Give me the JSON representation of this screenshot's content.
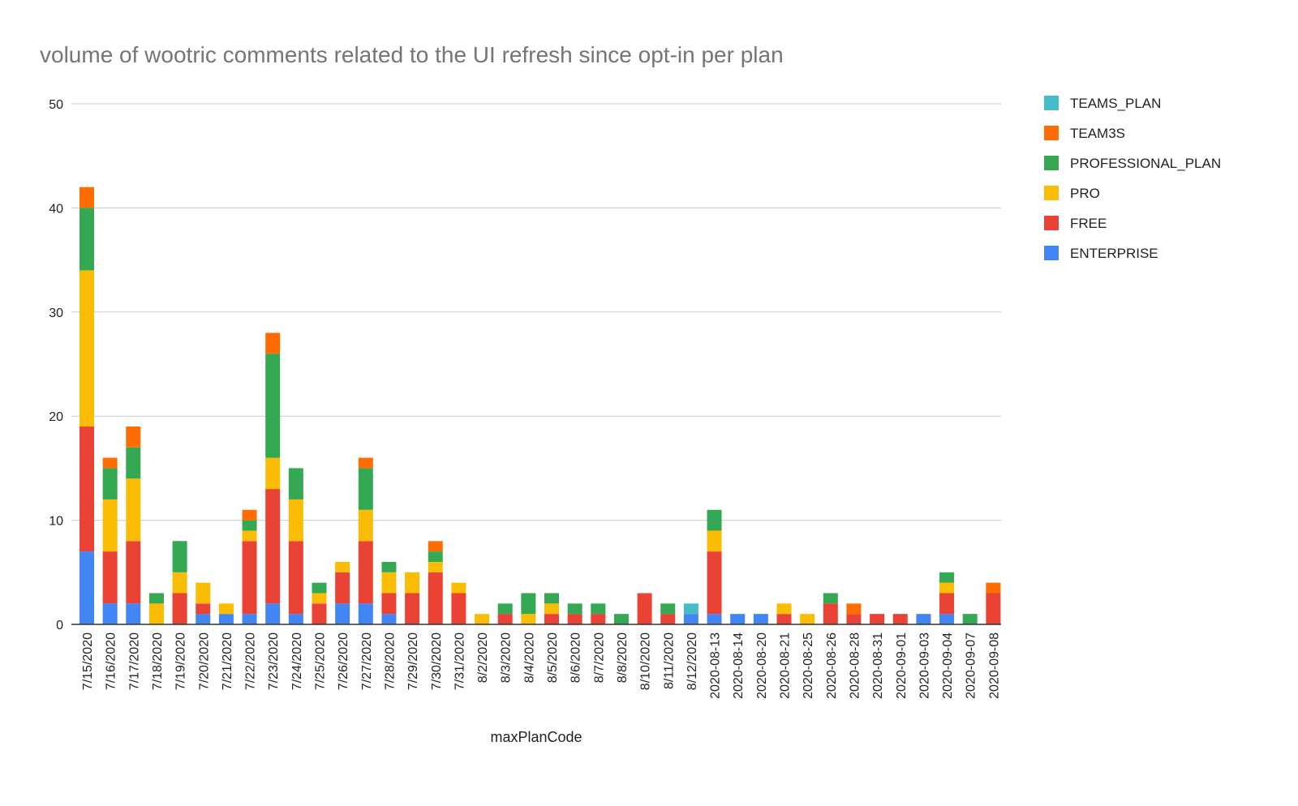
{
  "chart_data": {
    "type": "bar",
    "stacked": true,
    "title": "volume of wootric comments related to the UI refresh since opt-in per plan",
    "xlabel": "maxPlanCode",
    "ylabel": "",
    "ylim": [
      0,
      50
    ],
    "yticks": [
      0,
      10,
      20,
      30,
      40,
      50
    ],
    "grid": true,
    "legend_position": "right",
    "categories": [
      "7/15/2020",
      "7/16/2020",
      "7/17/2020",
      "7/18/2020",
      "7/19/2020",
      "7/20/2020",
      "7/21/2020",
      "7/22/2020",
      "7/23/2020",
      "7/24/2020",
      "7/25/2020",
      "7/26/2020",
      "7/27/2020",
      "7/28/2020",
      "7/29/2020",
      "7/30/2020",
      "7/31/2020",
      "8/2/2020",
      "8/3/2020",
      "8/4/2020",
      "8/5/2020",
      "8/6/2020",
      "8/7/2020",
      "8/8/2020",
      "8/10/2020",
      "8/11/2020",
      "8/12/2020",
      "2020-08-13",
      "2020-08-14",
      "2020-08-20",
      "2020-08-21",
      "2020-08-25",
      "2020-08-26",
      "2020-08-28",
      "2020-08-31",
      "2020-09-01",
      "2020-09-03",
      "2020-09-04",
      "2020-09-07",
      "2020-09-08"
    ],
    "series": [
      {
        "name": "ENTERPRISE",
        "color": "#4285f4",
        "values": [
          7,
          2,
          2,
          0,
          0,
          1,
          1,
          1,
          2,
          1,
          0,
          2,
          2,
          1,
          0,
          0,
          0,
          0,
          0,
          0,
          0,
          0,
          0,
          0,
          0,
          0,
          1,
          1,
          1,
          1,
          0,
          0,
          0,
          0,
          0,
          0,
          1,
          1,
          0,
          0
        ]
      },
      {
        "name": "FREE",
        "color": "#ea4335",
        "values": [
          12,
          5,
          6,
          0,
          3,
          1,
          0,
          7,
          11,
          7,
          2,
          3,
          6,
          2,
          3,
          5,
          3,
          0,
          1,
          0,
          1,
          1,
          1,
          0,
          3,
          1,
          0,
          6,
          0,
          0,
          1,
          0,
          2,
          1,
          1,
          1,
          0,
          2,
          0,
          3
        ]
      },
      {
        "name": "PRO",
        "color": "#fbbc04",
        "values": [
          15,
          5,
          6,
          2,
          2,
          2,
          1,
          1,
          3,
          4,
          1,
          1,
          3,
          2,
          2,
          1,
          1,
          1,
          0,
          1,
          1,
          0,
          0,
          0,
          0,
          0,
          0,
          2,
          0,
          0,
          1,
          1,
          0,
          0,
          0,
          0,
          0,
          1,
          0,
          0
        ]
      },
      {
        "name": "PROFESSIONAL_PLAN",
        "color": "#34a853",
        "values": [
          6,
          3,
          3,
          1,
          3,
          0,
          0,
          1,
          10,
          3,
          1,
          0,
          4,
          1,
          0,
          1,
          0,
          0,
          1,
          2,
          1,
          1,
          1,
          1,
          0,
          1,
          0,
          2,
          0,
          0,
          0,
          0,
          1,
          0,
          0,
          0,
          0,
          1,
          1,
          0
        ]
      },
      {
        "name": "TEAM3S",
        "color": "#ff6d01",
        "values": [
          2,
          1,
          2,
          0,
          0,
          0,
          0,
          1,
          2,
          0,
          0,
          0,
          1,
          0,
          0,
          1,
          0,
          0,
          0,
          0,
          0,
          0,
          0,
          0,
          0,
          0,
          0,
          0,
          0,
          0,
          0,
          0,
          0,
          1,
          0,
          0,
          0,
          0,
          0,
          1
        ]
      },
      {
        "name": "TEAMS_PLAN",
        "color": "#46bdc6",
        "values": [
          0,
          0,
          0,
          0,
          0,
          0,
          0,
          0,
          0,
          0,
          0,
          0,
          0,
          0,
          0,
          0,
          0,
          0,
          0,
          0,
          0,
          0,
          0,
          0,
          0,
          0,
          1,
          0,
          0,
          0,
          0,
          0,
          0,
          0,
          0,
          0,
          0,
          0,
          0,
          0
        ]
      }
    ],
    "legend_order": [
      "TEAMS_PLAN",
      "TEAM3S",
      "PROFESSIONAL_PLAN",
      "PRO",
      "FREE",
      "ENTERPRISE"
    ]
  },
  "style": {
    "title_color": "#757575",
    "text_color": "#222222",
    "grid_color": "#cccccc",
    "axis_color": "#333333"
  }
}
